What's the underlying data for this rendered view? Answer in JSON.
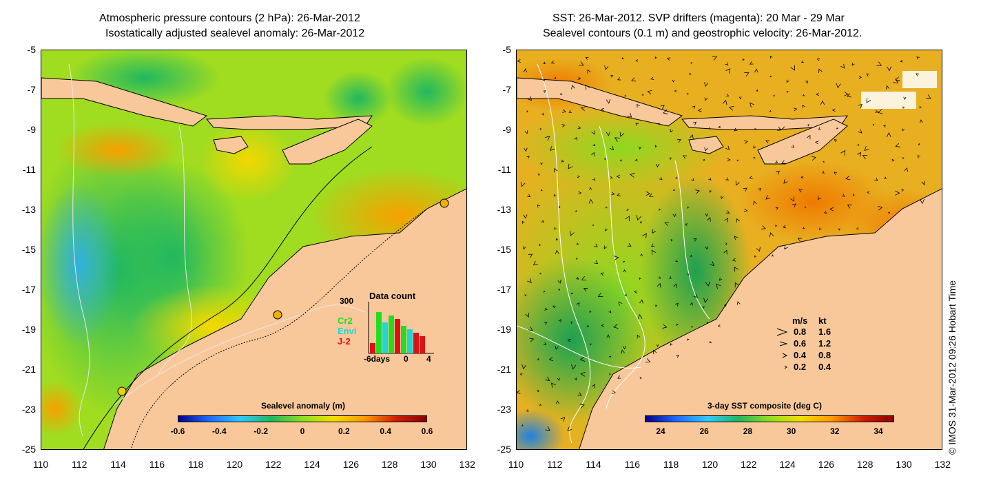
{
  "left_panel": {
    "title_line1": "Atmospheric pressure contours (2 hPa): 26-Mar-2012",
    "title_line2": "Isostatically adjusted sealevel anomaly: 26-Mar-2012",
    "colorbar": {
      "title": "Sealevel anomaly (m)",
      "ticks": [
        "-0.6",
        "-0.4",
        "-0.2",
        "0",
        "0.2",
        "0.4",
        "0.6"
      ],
      "colors": [
        "#00008c",
        "#1e6bff",
        "#30c8ff",
        "#20b860",
        "#8ee020",
        "#f0e000",
        "#ff9a00",
        "#d02000",
        "#8c0000"
      ]
    },
    "data_count": {
      "title": "Data count",
      "ymax_label": "300",
      "satellites": [
        {
          "name": "Cr2",
          "color": "#22dd22"
        },
        {
          "name": "Envi",
          "color": "#22d4d4"
        },
        {
          "name": "J-2",
          "color": "#dd1111"
        }
      ],
      "x_labels": [
        "-6days",
        "0",
        "4"
      ]
    }
  },
  "right_panel": {
    "title_line1": "SST: 26-Mar-2012. SVP drifters (magenta): 20 Mar - 29 Mar",
    "title_line2": "Sealevel contours (0.1 m) and geostrophic velocity: 26-Mar-2012.",
    "colorbar": {
      "title": "3-day SST composite (deg C)",
      "ticks": [
        "24",
        "26",
        "28",
        "30",
        "32",
        "34"
      ],
      "colors": [
        "#00008c",
        "#1e6bff",
        "#30c8ff",
        "#20b860",
        "#8ee020",
        "#f0e000",
        "#ff9a00",
        "#d02000",
        "#8c0000"
      ]
    },
    "velocity_legend": {
      "header_ms": "m/s",
      "header_kt": "kt",
      "rows": [
        {
          "ms": "0.8",
          "kt": "1.6"
        },
        {
          "ms": "0.6",
          "kt": "1.2"
        },
        {
          "ms": "0.4",
          "kt": "0.8"
        },
        {
          "ms": "0.2",
          "kt": "0.4"
        }
      ]
    }
  },
  "axes": {
    "lat_ticks": [
      "-5",
      "-7",
      "-9",
      "-11",
      "-13",
      "-15",
      "-17",
      "-19",
      "-21",
      "-23",
      "-25"
    ],
    "lon_ticks": [
      "110",
      "112",
      "114",
      "116",
      "118",
      "120",
      "122",
      "124",
      "126",
      "128",
      "130",
      "132"
    ]
  },
  "stamp": "© IMOS 31-Mar-2012 09:26 Hobart Time",
  "colors": {
    "land": "#f8c89a",
    "sea_anomaly_base": "#a8e020",
    "sst_base": "#f0b020"
  }
}
